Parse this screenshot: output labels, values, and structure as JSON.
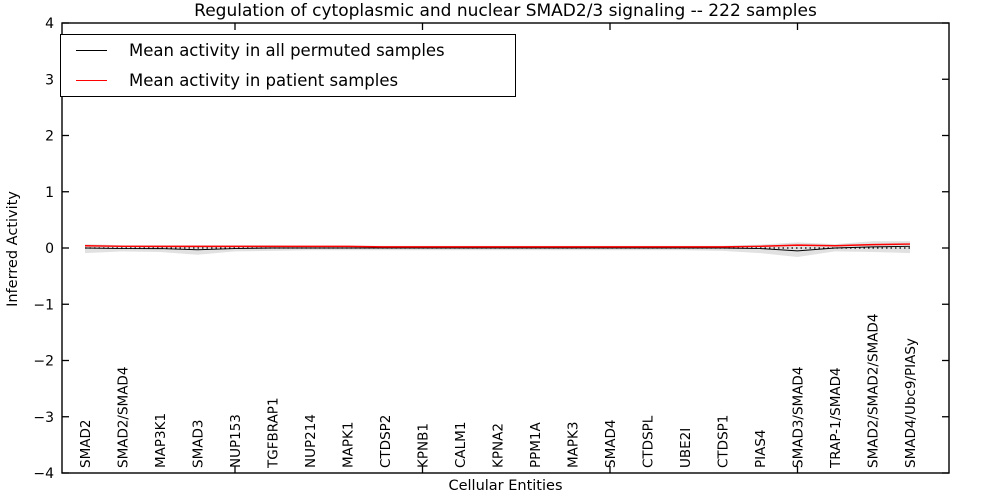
{
  "title": "Regulation of cytoplasmic and nuclear SMAD2/3 signaling -- 222 samples",
  "legend": {
    "entries": [
      {
        "label": "Mean activity in all permuted samples",
        "color": "#000000"
      },
      {
        "label": "Mean activity in patient samples",
        "color": "#ff0000"
      }
    ]
  },
  "chart_data": {
    "type": "line",
    "title": "Regulation of cytoplasmic and nuclear SMAD2/3 signaling -- 222 samples",
    "xlabel": "Cellular Entities",
    "ylabel": "Inferred Activity",
    "ylim": [
      -4,
      4
    ],
    "yticks": [
      -4,
      -3,
      -2,
      -1,
      0,
      1,
      2,
      3,
      4
    ],
    "xtick_positions": [
      5,
      10,
      15,
      20
    ],
    "grid": false,
    "legend_position": "upper left",
    "categories": [
      "SMAD2",
      "SMAD2/SMAD4",
      "MAP3K1",
      "SMAD3",
      "NUP153",
      "TGFBRAP1",
      "NUP214",
      "MAPK1",
      "CTDSP2",
      "KPNB1",
      "CALM1",
      "KPNA2",
      "PPM1A",
      "MAPK3",
      "SMAD4",
      "CTDSPL",
      "UBE2I",
      "CTDSP1",
      "PIAS4",
      "SMAD3/SMAD4",
      "TRAP-1/SMAD4",
      "SMAD2/SMAD2/SMAD4",
      "SMAD4/Ubc9/PIASy"
    ],
    "series": [
      {
        "name": "zero-reference",
        "color": "#000000",
        "style": "dotted",
        "width": 1.2,
        "values": [
          0,
          0,
          0,
          0,
          0,
          0,
          0,
          0,
          0,
          0,
          0,
          0,
          0,
          0,
          0,
          0,
          0,
          0,
          0,
          0,
          0,
          0,
          0
        ]
      },
      {
        "name": "Mean activity in all permuted samples",
        "color": "#000000",
        "style": "solid",
        "width": 1,
        "values": [
          0,
          -0.01,
          -0.01,
          -0.03,
          -0.01,
          0,
          0,
          0,
          0,
          0,
          0,
          0,
          0,
          0,
          0,
          0,
          0,
          0,
          -0.01,
          -0.05,
          0,
          0.02,
          0.03
        ]
      },
      {
        "name": "Mean activity in patient samples",
        "color": "#ff0000",
        "style": "solid",
        "width": 1.5,
        "values": [
          0.04,
          0.03,
          0.03,
          0.03,
          0.03,
          0.03,
          0.03,
          0.03,
          0.02,
          0.02,
          0.02,
          0.02,
          0.02,
          0.02,
          0.02,
          0.02,
          0.02,
          0.02,
          0.03,
          0.05,
          0.04,
          0.06,
          0.07
        ]
      }
    ],
    "band": {
      "name": "permuted-std-band",
      "color": "#c9c9c9",
      "upper": [
        0.07,
        0.05,
        0.05,
        0.05,
        0.05,
        0.05,
        0.04,
        0.04,
        0.04,
        0.04,
        0.04,
        0.04,
        0.04,
        0.04,
        0.04,
        0.04,
        0.04,
        0.04,
        0.06,
        0.1,
        0.07,
        0.12,
        0.12
      ],
      "lower": [
        -0.09,
        -0.06,
        -0.07,
        -0.12,
        -0.06,
        -0.05,
        -0.04,
        -0.04,
        -0.04,
        -0.04,
        -0.04,
        -0.04,
        -0.04,
        -0.04,
        -0.04,
        -0.04,
        -0.04,
        -0.05,
        -0.09,
        -0.16,
        -0.06,
        -0.07,
        -0.09
      ]
    }
  }
}
